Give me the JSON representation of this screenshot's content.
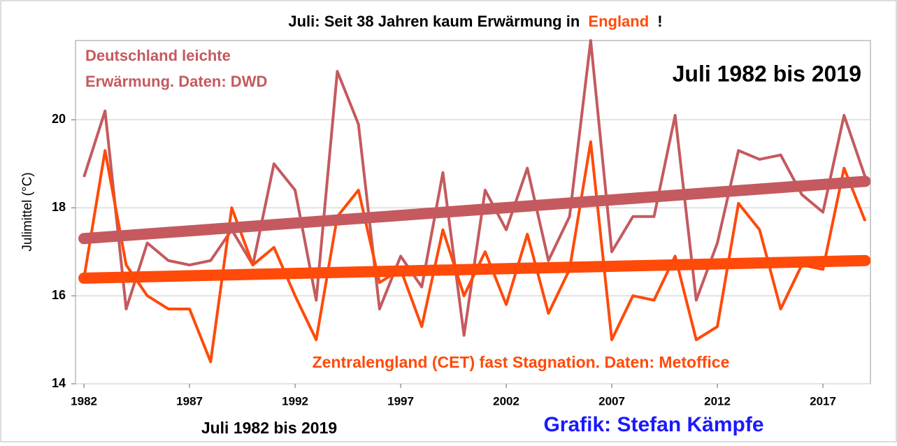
{
  "chart_data": {
    "type": "line",
    "title_parts": [
      "Juli: Seit 38 Jahren kaum Erwärmung in",
      "England",
      "!"
    ],
    "title_colors": [
      "#000000",
      "#ff4a0a",
      "#000000"
    ],
    "y_label": "Julimittel (°C)",
    "annotations": {
      "dwd": [
        "Deutschland leichte",
        "Erwärmung. Daten: DWD"
      ],
      "cet": "Zentralengland (CET) fast Stagnation. Daten: Metoffice",
      "period_top": "Juli 1982 bis 2019",
      "period_bottom": "Juli 1982 bis 2019",
      "credit": "Grafik: Stefan Kämpfe"
    },
    "x": [
      1982,
      1983,
      1984,
      1985,
      1986,
      1987,
      1988,
      1989,
      1990,
      1991,
      1992,
      1993,
      1994,
      1995,
      1996,
      1997,
      1998,
      1999,
      2000,
      2001,
      2002,
      2003,
      2004,
      2005,
      2006,
      2007,
      2008,
      2009,
      2010,
      2011,
      2012,
      2013,
      2014,
      2015,
      2016,
      2017,
      2018,
      2019
    ],
    "trend_x": [
      1982,
      2019
    ],
    "series": [
      {
        "color": "#c45a5f",
        "values": [
          18.7,
          20.2,
          15.7,
          17.2,
          16.8,
          16.7,
          16.8,
          17.5,
          16.7,
          19.0,
          18.4,
          15.9,
          21.1,
          19.9,
          15.7,
          16.9,
          16.2,
          18.8,
          15.1,
          18.4,
          17.5,
          18.9,
          16.8,
          17.8,
          21.8,
          17.0,
          17.8,
          17.8,
          20.1,
          15.9,
          17.2,
          19.3,
          19.1,
          19.2,
          18.3,
          17.9,
          20.1,
          18.7
        ],
        "trend": [
          17.3,
          18.6
        ]
      },
      {
        "color": "#ff4a0a",
        "values": [
          16.4,
          19.3,
          16.7,
          16.0,
          15.7,
          15.7,
          14.5,
          18.0,
          16.7,
          17.1,
          16.0,
          15.0,
          17.8,
          18.4,
          16.3,
          16.6,
          15.3,
          17.5,
          16.0,
          17.0,
          15.8,
          17.4,
          15.6,
          16.6,
          19.5,
          15.0,
          16.0,
          15.9,
          16.9,
          15.0,
          15.3,
          18.1,
          17.5,
          15.7,
          16.7,
          16.6,
          18.9,
          17.7
        ],
        "trend": [
          16.4,
          16.8
        ]
      }
    ],
    "xlim": [
      1981.6,
      2019.25
    ],
    "xticks": [
      1982,
      1987,
      1992,
      1997,
      2002,
      2007,
      2012,
      2017
    ],
    "ylim": [
      14,
      21.8
    ],
    "yticks": [
      14,
      16,
      18,
      20
    ],
    "grid": true
  }
}
